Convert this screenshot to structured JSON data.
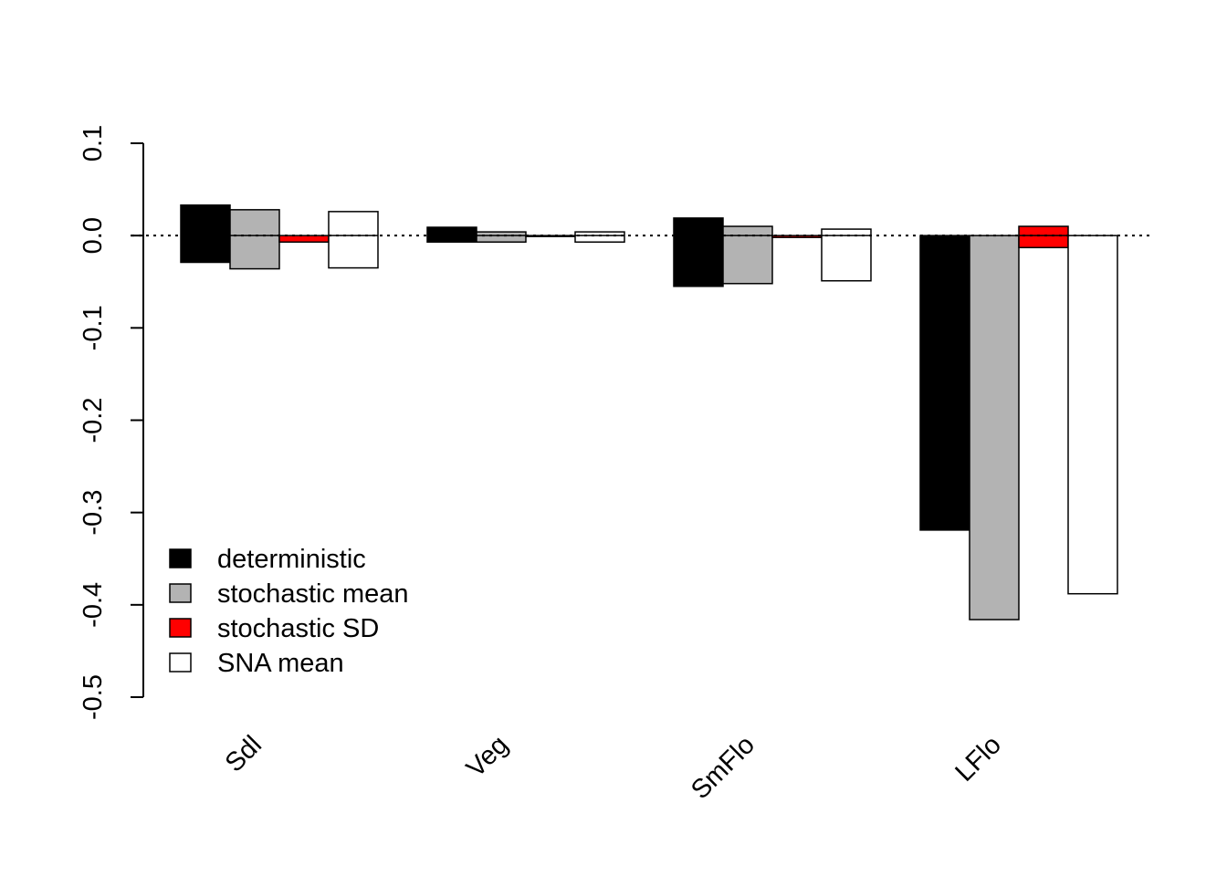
{
  "chart_data": {
    "type": "bar",
    "title": "",
    "xlabel": "",
    "ylabel": "",
    "ylim": [
      -0.5,
      0.1
    ],
    "yticks": [
      0.1,
      0.0,
      -0.1,
      -0.2,
      -0.3,
      -0.4,
      -0.5
    ],
    "ytick_labels": [
      "0.1",
      "0.0",
      "-0.1",
      "-0.2",
      "-0.3",
      "-0.4",
      "-0.5"
    ],
    "categories": [
      "Sdl",
      "Veg",
      "SmFlo",
      "LFlo"
    ],
    "reference_line": 0,
    "grid": false,
    "legend_position": "bottom-left",
    "series": [
      {
        "name": "deterministic",
        "color": "#000000",
        "positive": [
          0.033,
          0.009,
          0.019,
          0.0
        ],
        "negative": [
          -0.029,
          -0.007,
          -0.055,
          -0.319
        ]
      },
      {
        "name": "stochastic mean",
        "color": "#b3b3b3",
        "positive": [
          0.028,
          0.004,
          0.01,
          0.0
        ],
        "negative": [
          -0.036,
          -0.007,
          -0.052,
          -0.416
        ]
      },
      {
        "name": "stochastic SD",
        "color": "#ff0000",
        "positive": [
          0.0,
          0.0,
          0.0,
          0.01
        ],
        "negative": [
          -0.007,
          -0.001,
          -0.002,
          -0.013
        ]
      },
      {
        "name": "SNA mean",
        "color": "#ffffff",
        "positive": [
          0.026,
          0.004,
          0.007,
          0.0
        ],
        "negative": [
          -0.035,
          -0.007,
          -0.049,
          -0.388
        ]
      }
    ]
  }
}
